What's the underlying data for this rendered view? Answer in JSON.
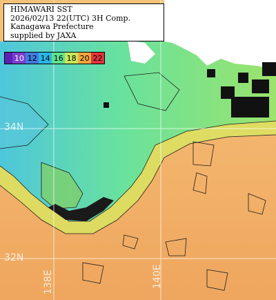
{
  "caption": {
    "line1": "HIMAWARI SST",
    "line2": "2026/02/13 22(UTC) 3H Comp.",
    "line3": "Kanagawa Prefecture",
    "line4": "supplied by JAXA"
  },
  "color_scale": {
    "ticks": [
      "10",
      "12",
      "14",
      "16",
      "18",
      "20",
      "22"
    ],
    "colors": [
      "#7a3fd2",
      "#3f7ce0",
      "#27b6e6",
      "#5fe28f",
      "#c8e85a",
      "#f5a640",
      "#e2343a"
    ]
  },
  "grid_labels": {
    "lat_34": "34N",
    "lat_32": "32N",
    "lon_138": "138E",
    "lon_140": "140E"
  },
  "colors": {
    "land": "#ffffff",
    "cloud_mask": "#111111",
    "warm_sea": "#f0b36a",
    "cold_sea": "#5cd0c8"
  }
}
